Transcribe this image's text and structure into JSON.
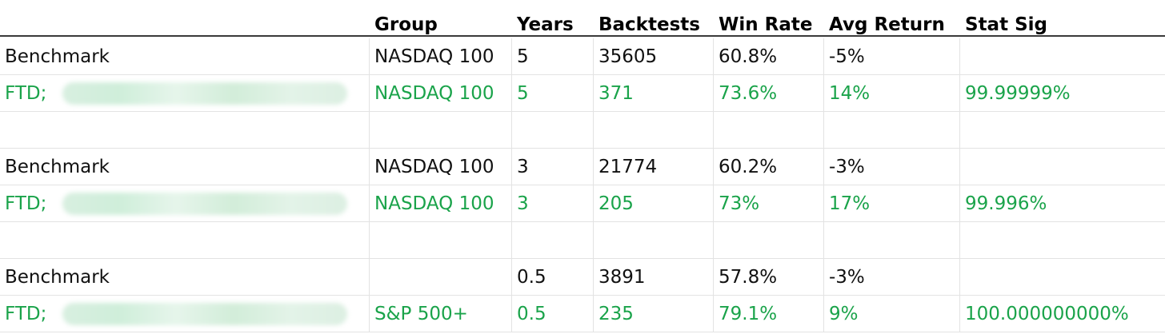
{
  "colors": {
    "benchmark_text": "#111111",
    "ftd_text": "#1aa34a",
    "header_text": "#000000",
    "header_rule": "#3a3a3a",
    "grid_line": "#e3e3e3"
  },
  "table": {
    "headers": [
      "",
      "Group",
      "Years",
      "Backtests",
      "Win Rate",
      "Avg Return",
      "Stat Sig"
    ],
    "rows": [
      {
        "kind": "bench",
        "label": "Benchmark",
        "group": "NASDAQ 100",
        "years": "5",
        "backtests": "35605",
        "win_rate": "60.8%",
        "avg_return": "-5%",
        "stat_sig": ""
      },
      {
        "kind": "ftd",
        "label": "FTD;",
        "group": "NASDAQ 100",
        "years": "5",
        "backtests": "371",
        "win_rate": "73.6%",
        "avg_return": "14%",
        "stat_sig": "99.99999%"
      },
      {
        "kind": "blank"
      },
      {
        "kind": "bench",
        "label": "Benchmark",
        "group": "NASDAQ 100",
        "years": "3",
        "backtests": "21774",
        "win_rate": "60.2%",
        "avg_return": "-3%",
        "stat_sig": ""
      },
      {
        "kind": "ftd",
        "label": "FTD;",
        "group": "NASDAQ 100",
        "years": "3",
        "backtests": "205",
        "win_rate": "73%",
        "avg_return": "17%",
        "stat_sig": "99.996%"
      },
      {
        "kind": "blank"
      },
      {
        "kind": "bench",
        "label": "Benchmark",
        "group": "",
        "years": "0.5",
        "backtests": "3891",
        "win_rate": "57.8%",
        "avg_return": "-3%",
        "stat_sig": ""
      },
      {
        "kind": "ftd",
        "label": "FTD;",
        "group": "S&P 500+",
        "years": "0.5",
        "backtests": "235",
        "win_rate": "79.1%",
        "avg_return": "9%",
        "stat_sig": "100.000000000%"
      }
    ]
  }
}
